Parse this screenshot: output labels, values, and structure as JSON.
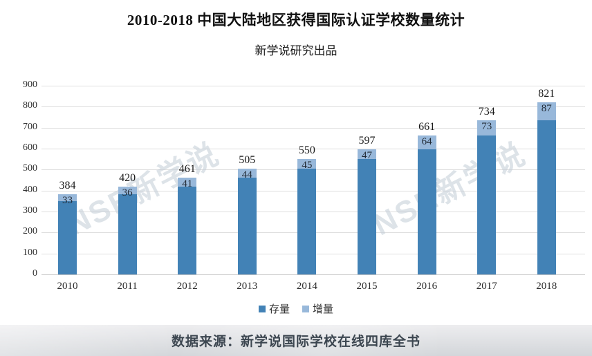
{
  "header": {
    "title": "2010-2018 中国大陆地区获得国际认证学校数量统计",
    "subtitle": "新学说研究出品"
  },
  "watermark": {
    "text": "NSE新学说"
  },
  "footer": {
    "source": "数据来源：新学说国际学校在线四库全书"
  },
  "colors": {
    "stock_bar": "#4282b6",
    "increment_bar": "#98b8da",
    "gridline": "#dedede",
    "banner_text": "#3c4650"
  },
  "chart_data": {
    "type": "bar",
    "stacked": true,
    "title": "2010-2018 中国大陆地区获得国际认证学校数量统计",
    "subtitle": "新学说研究出品",
    "categories": [
      "2010",
      "2011",
      "2012",
      "2013",
      "2014",
      "2015",
      "2016",
      "2017",
      "2018"
    ],
    "series": [
      {
        "name": "存量",
        "color": "#4282b6",
        "values": [
          351,
          384,
          420,
          461,
          505,
          550,
          597,
          661,
          734
        ]
      },
      {
        "name": "增量",
        "color": "#98b8da",
        "values": [
          33,
          36,
          41,
          44,
          45,
          47,
          64,
          73,
          87
        ]
      }
    ],
    "totals": [
      384,
      420,
      461,
      505,
      550,
      597,
      661,
      734,
      821
    ],
    "total_labels": [
      "384",
      "420",
      "461",
      "505",
      "550",
      "597",
      "661",
      "734",
      "821"
    ],
    "increment_labels": [
      "33",
      "36",
      "41",
      "44",
      "45",
      "47",
      "64",
      "73",
      "87"
    ],
    "xlabel": "",
    "ylabel": "",
    "ylim": [
      0,
      900
    ],
    "ytick_step": 100,
    "ytick_labels": [
      "0",
      "100",
      "200",
      "300",
      "400",
      "500",
      "600",
      "700",
      "800",
      "900"
    ],
    "grid": true,
    "legend_position": "bottom"
  }
}
